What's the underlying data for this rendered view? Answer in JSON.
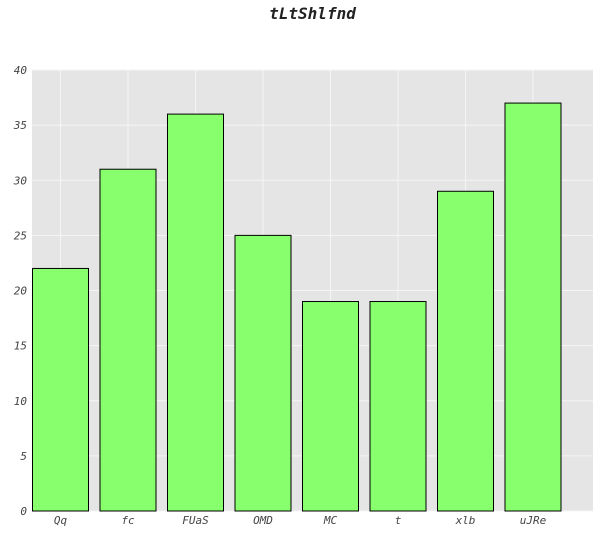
{
  "chart_data": {
    "type": "bar",
    "title": "tLtShlfnd",
    "xlabel": "",
    "ylabel": "",
    "categories": [
      "Qq",
      "fc",
      "FUaS",
      "OMD",
      "MC",
      "t",
      "xlb",
      "uJRe"
    ],
    "values": [
      22,
      31,
      36,
      25,
      19,
      19,
      29,
      37
    ],
    "ylim": [
      0,
      40
    ],
    "yticks": [
      0,
      5,
      10,
      15,
      20,
      25,
      30,
      35,
      40
    ],
    "grid": true,
    "legend": "none",
    "colors": {
      "bar_fill": "#88ff6c",
      "bar_stroke": "#000000",
      "plot_background": "#e5e5e5",
      "grid": "#f5f5f5"
    }
  }
}
